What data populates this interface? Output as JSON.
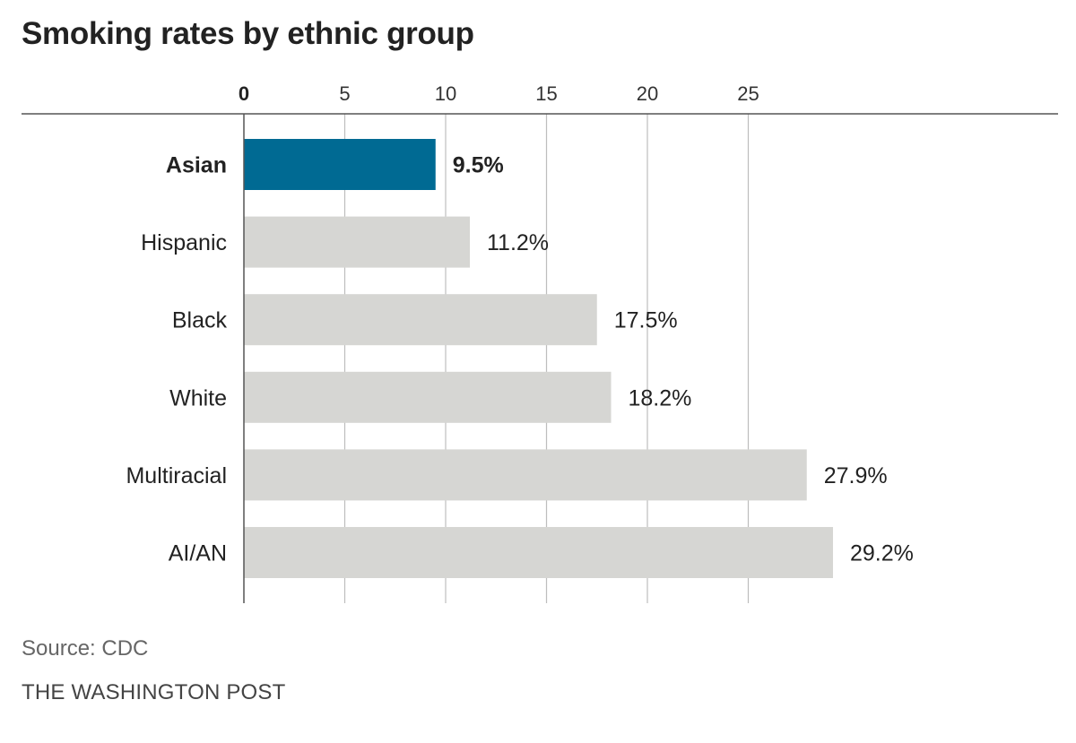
{
  "chart_data": {
    "type": "bar",
    "orientation": "horizontal",
    "title": "Smoking rates by ethnic group",
    "categories": [
      "Asian",
      "Hispanic",
      "Black",
      "White",
      "Multiracial",
      "AI/AN"
    ],
    "values": [
      9.5,
      11.2,
      17.5,
      18.2,
      27.9,
      29.2
    ],
    "value_labels": [
      "9.5%",
      "11.2%",
      "17.5%",
      "18.2%",
      "27.9%",
      "29.2%"
    ],
    "highlight_category": "Asian",
    "x_ticks": [
      0,
      5,
      10,
      15,
      20,
      25
    ],
    "x_tick_labels": [
      "0",
      "5",
      "10",
      "15",
      "20",
      "25"
    ],
    "xlim": [
      0,
      29.2
    ],
    "xlabel": "",
    "ylabel": "",
    "grid": true,
    "axis_position": "top",
    "colors": {
      "highlight": "#006a93",
      "default": "#d6d6d3",
      "grid": "#bdbdbd",
      "axis": "#555555"
    }
  },
  "source": "Source: CDC",
  "credit": "THE WASHINGTON POST"
}
